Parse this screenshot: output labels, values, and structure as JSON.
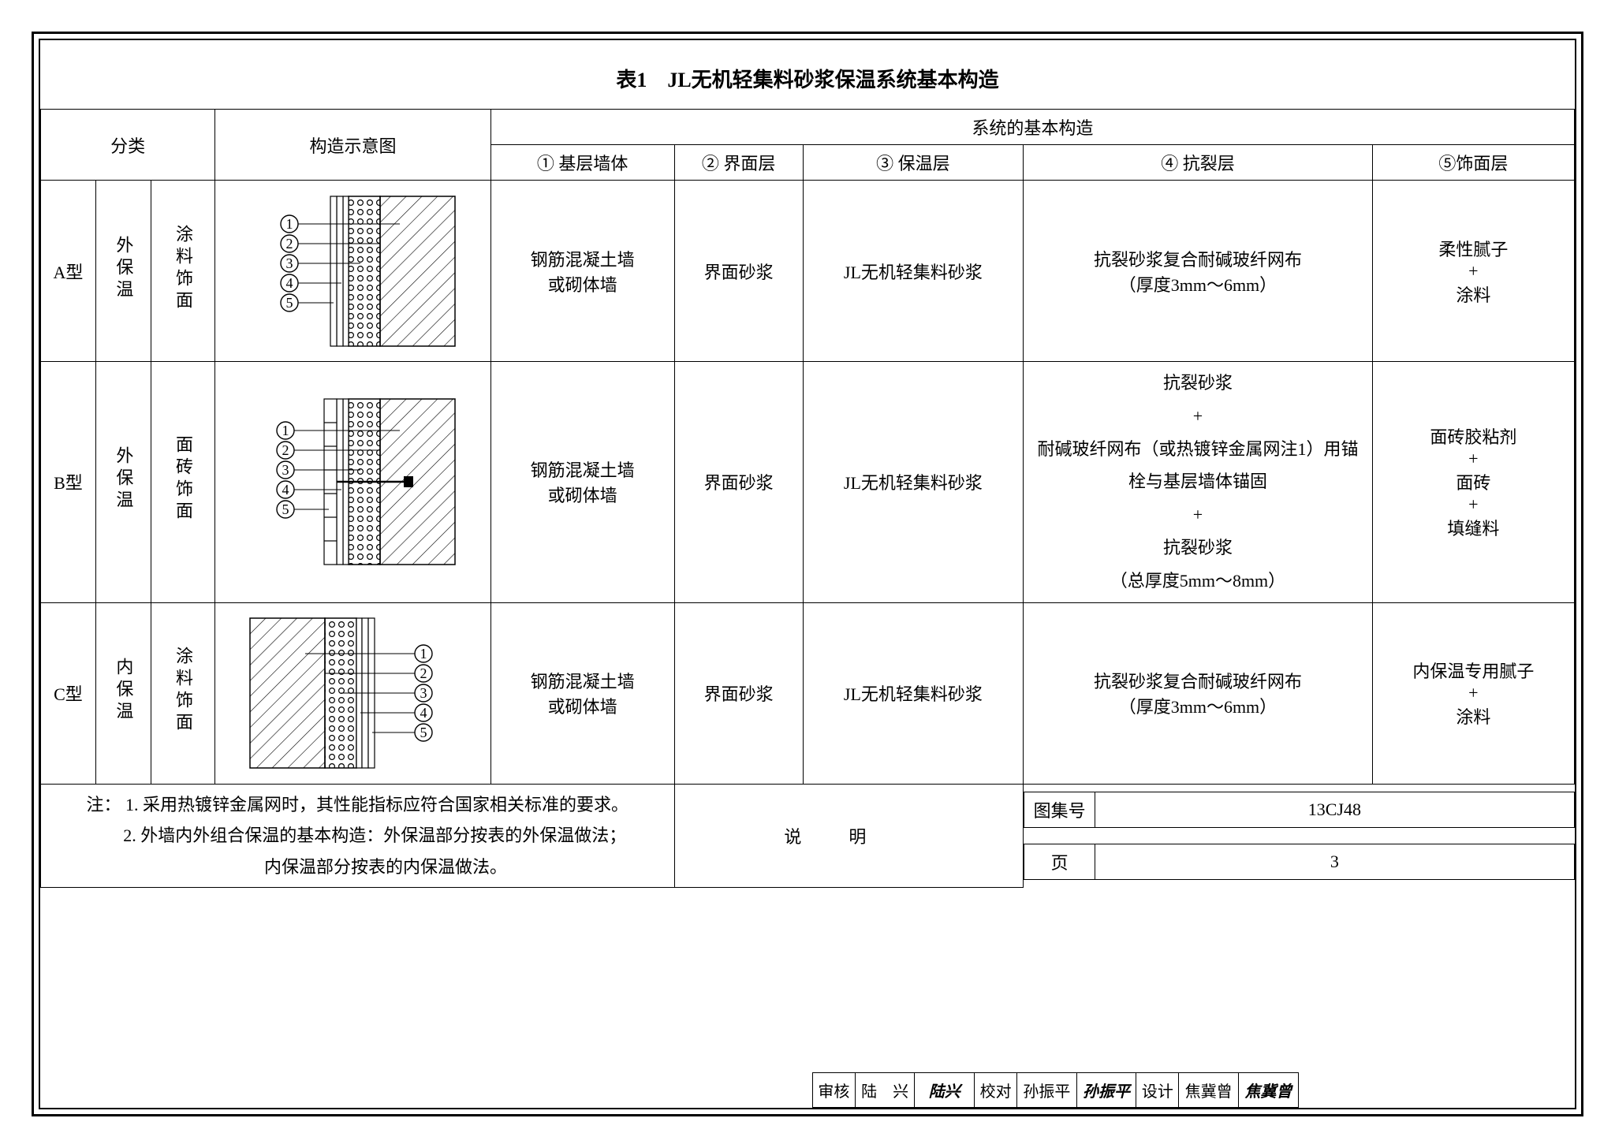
{
  "title": "表1　JL无机轻集料砂浆保温系统基本构造",
  "headers": {
    "cat": "分类",
    "diagram": "构造示意图",
    "sys": "系统的基本构造",
    "c1": "①  基层墙体",
    "c2": "② 界面层",
    "c3": "③ 保温层",
    "c4": "④  抗裂层",
    "c5": "⑤饰面层"
  },
  "rows": [
    {
      "type": "A型",
      "pos": "外保温",
      "finish": "涂料饰面",
      "c1": "钢筋混凝土墙\n或砌体墙",
      "c2": "界面砂浆",
      "c3": "JL无机轻集料砂浆",
      "c4": "抗裂砂浆复合耐碱玻纤网布\n（厚度3mm～6mm）",
      "c5": "柔性腻子\n+\n涂料"
    },
    {
      "type": "B型",
      "pos": "外保温",
      "finish": "面砖饰面",
      "c1": "钢筋混凝土墙\n或砌体墙",
      "c2": "界面砂浆",
      "c3": "JL无机轻集料砂浆",
      "c4": "抗裂砂浆\n+\n耐碱玻纤网布（或热镀锌金属网注1）用锚栓与基层墙体锚固\n+\n抗裂砂浆\n（总厚度5mm～8mm）",
      "c5": "面砖胶粘剂\n+\n面砖\n+\n填缝料"
    },
    {
      "type": "C型",
      "pos": "内保温",
      "finish": "涂料饰面",
      "c1": "钢筋混凝土墙\n或砌体墙",
      "c2": "界面砂浆",
      "c3": "JL无机轻集料砂浆",
      "c4": "抗裂砂浆复合耐碱玻纤网布\n（厚度3mm～6mm）",
      "c5": "内保温专用腻子\n+\n涂料"
    }
  ],
  "notes": {
    "prefix": "注：",
    "n1": "1. 采用热镀锌金属网时，其性能指标应符合国家相关标准的要求。",
    "n2": "2. 外墙内外组合保温的基本构造：外保温部分按表的外保温做法；",
    "n3": "　 内保温部分按表的内保温做法。"
  },
  "titleblock": {
    "shuoming": "说明",
    "tuji_label": "图集号",
    "tuji_val": "13CJ48",
    "ye_label": "页",
    "ye_val": "3",
    "shenhe": "审核",
    "shenhe_name": "陆　兴",
    "shenhe_sig": "陆兴",
    "jiaodui": "校对",
    "jiaodui_name": "孙振平",
    "jiaodui_sig": "孙振平",
    "sheji": "设计",
    "sheji_name": "焦冀曾",
    "sheji_sig": "焦冀曾"
  },
  "style": {
    "border_color": "#000000",
    "bg": "#ffffff",
    "font_body": 22,
    "font_title": 26
  }
}
